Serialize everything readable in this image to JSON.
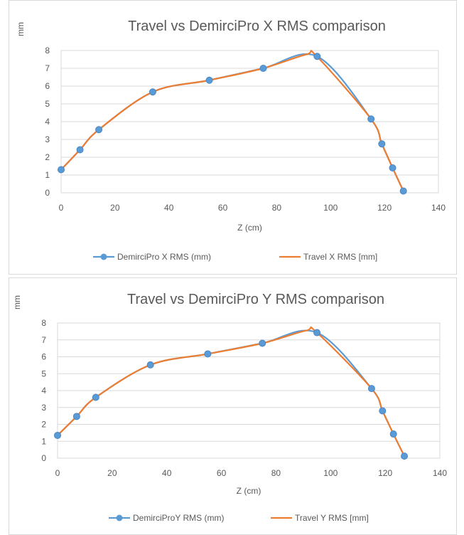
{
  "chart_data": [
    {
      "type": "line",
      "title": "Travel vs DemirciPro X RMS comparison",
      "ylabel": "mm",
      "xlabel": "Z (cm)",
      "xlim": [
        0,
        140
      ],
      "ylim": [
        0,
        8
      ],
      "xticks": [
        "0",
        "20",
        "40",
        "60",
        "80",
        "100",
        "120",
        "140"
      ],
      "yticks": [
        "0",
        "1",
        "2",
        "3",
        "4",
        "5",
        "6",
        "7",
        "8"
      ],
      "grid": "horizontal",
      "legend_position": "bottom",
      "series": [
        {
          "name": "DemirciPro X RMS (mm)",
          "color": "#5b9bd5",
          "marker": "circle",
          "x": [
            0,
            7,
            14,
            34,
            55,
            75,
            95,
            115,
            119,
            123,
            127
          ],
          "y": [
            1.3,
            2.42,
            3.55,
            5.67,
            6.33,
            7.0,
            7.67,
            4.15,
            2.75,
            1.4,
            0.1
          ]
        },
        {
          "name": "Travel X RMS [mm]",
          "color": "#ed7d31",
          "marker": "none",
          "x": [
            0,
            7,
            14,
            34,
            55,
            75,
            91,
            95,
            115,
            119,
            123,
            127
          ],
          "y": [
            1.3,
            2.42,
            3.55,
            5.67,
            6.33,
            7.0,
            7.78,
            7.65,
            4.15,
            2.75,
            1.4,
            0.1
          ]
        }
      ]
    },
    {
      "type": "line",
      "title": "Travel vs DemirciPro Y RMS comparison",
      "ylabel": "mm",
      "xlabel": "Z (cm)",
      "xlim": [
        0,
        140
      ],
      "ylim": [
        0,
        8
      ],
      "xticks": [
        "0",
        "20",
        "40",
        "60",
        "80",
        "100",
        "120",
        "140"
      ],
      "yticks": [
        "0",
        "1",
        "2",
        "3",
        "4",
        "5",
        "6",
        "7",
        "8"
      ],
      "grid": "horizontal",
      "legend_position": "bottom",
      "series": [
        {
          "name": "DemirciProY RMS (mm)",
          "color": "#5b9bd5",
          "marker": "circle",
          "x": [
            0,
            7,
            14,
            34,
            55,
            75,
            95,
            115,
            119,
            123,
            127
          ],
          "y": [
            1.35,
            2.47,
            3.6,
            5.52,
            6.17,
            6.8,
            7.43,
            4.12,
            2.8,
            1.43,
            0.12
          ]
        },
        {
          "name": "Travel Y RMS [mm]",
          "color": "#ed7d31",
          "marker": "none",
          "x": [
            0,
            7,
            14,
            34,
            55,
            75,
            91,
            95,
            115,
            119,
            123,
            127
          ],
          "y": [
            1.35,
            2.47,
            3.6,
            5.52,
            6.17,
            6.8,
            7.55,
            7.43,
            4.12,
            2.8,
            1.43,
            0.12
          ]
        }
      ]
    }
  ]
}
